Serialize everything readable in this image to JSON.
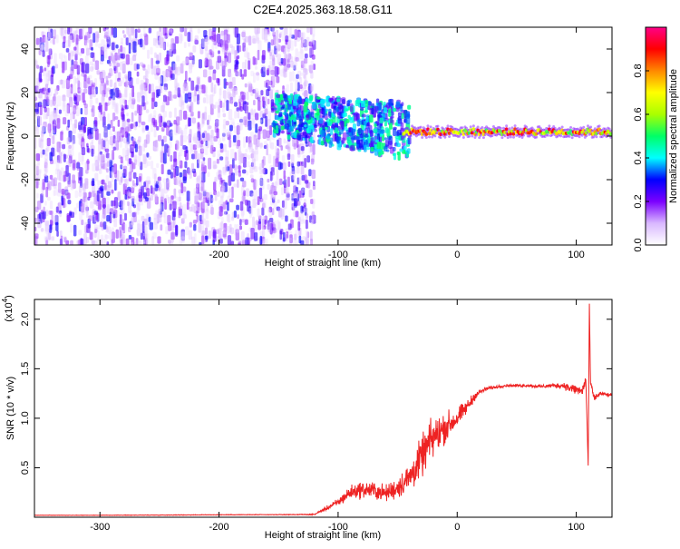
{
  "title": "C2E4.2025.363.18.58.G11",
  "chart_data": [
    {
      "type": "heatmap",
      "xlabel": "Height of straight line (km)",
      "ylabel": "Frequency (Hz)",
      "xlim": [
        -355,
        130
      ],
      "ylim": [
        -50,
        50
      ],
      "x_ticks": [
        -300,
        -200,
        -100,
        0,
        100
      ],
      "y_ticks": [
        -40,
        -20,
        0,
        20,
        40
      ],
      "colorbar": {
        "label": "Normalized spectral amplitude",
        "range": [
          0,
          1
        ],
        "ticks": [
          "0.0",
          "0.2",
          "0.4",
          "0.6",
          "0.8"
        ],
        "ticks_values": [
          0,
          0.2,
          0.4,
          0.6,
          0.8
        ],
        "colormap": [
          "#ffffff",
          "#d9b8ff",
          "#7b00ff",
          "#0000ff",
          "#00ffff",
          "#00ff66",
          "#aaff00",
          "#ffff00",
          "#ff8800",
          "#ff0000",
          "#ff0088"
        ]
      },
      "regions": [
        {
          "name": "noise",
          "x_from": -355,
          "x_to": -120,
          "freq_from": -50,
          "freq_to": 50,
          "amplitude": [
            0.05,
            0.3
          ]
        },
        {
          "name": "transition",
          "x_from": -155,
          "x_to": -40,
          "center_freq": [
            10,
            2
          ],
          "half_width": [
            9,
            13
          ],
          "amplitude": [
            0.2,
            0.5
          ]
        },
        {
          "name": "tone",
          "x_from": -45,
          "x_to": 130,
          "freq": 2,
          "amplitude": [
            0.5,
            0.95
          ]
        }
      ]
    },
    {
      "type": "line",
      "xlabel": "Height of straight line (km)",
      "ylabel": "SNR (10 * v/v)",
      "y_multiplier": "(x10^4)",
      "y_multiplier_base": "(x10",
      "y_multiplier_exp": "4",
      "xlim": [
        -355,
        130
      ],
      "ylim": [
        0,
        22000
      ],
      "x_ticks": [
        -300,
        -200,
        -100,
        0,
        100
      ],
      "y_ticks": [
        5000,
        10000,
        15000,
        20000
      ],
      "y_tick_labels": [
        "0.5",
        "1.0",
        "1.5",
        "2.0"
      ],
      "color": "#ee2222",
      "x": [
        -355,
        -300,
        -250,
        -200,
        -150,
        -120,
        -100,
        -90,
        -80,
        -70,
        -60,
        -50,
        -40,
        -35,
        -30,
        -25,
        -20,
        -15,
        -10,
        -5,
        0,
        5,
        10,
        15,
        20,
        25,
        30,
        40,
        50,
        60,
        70,
        80,
        90,
        95,
        100,
        105,
        108,
        110,
        111,
        112,
        115,
        120,
        125,
        130
      ],
      "y": [
        200,
        200,
        220,
        250,
        260,
        280,
        1500,
        2500,
        2800,
        2700,
        2400,
        3000,
        4000,
        5000,
        6000,
        7200,
        8000,
        8600,
        9100,
        9500,
        10000,
        10700,
        11400,
        12300,
        12700,
        13000,
        13100,
        13300,
        13300,
        13300,
        13200,
        13300,
        13300,
        13000,
        12900,
        12700,
        14000,
        5300,
        21200,
        13500,
        12000,
        12500,
        12400,
        12300
      ],
      "noise_amp": [
        30,
        30,
        40,
        40,
        40,
        60,
        600,
        1000,
        1200,
        1300,
        1200,
        1600,
        2200,
        2600,
        2800,
        3000,
        3000,
        2600,
        2200,
        1800,
        1500,
        1200,
        900,
        600,
        400,
        300,
        250,
        200,
        200,
        200,
        250,
        300,
        500,
        700,
        800,
        900,
        900,
        500,
        600,
        700,
        500,
        300,
        250,
        250
      ]
    }
  ]
}
